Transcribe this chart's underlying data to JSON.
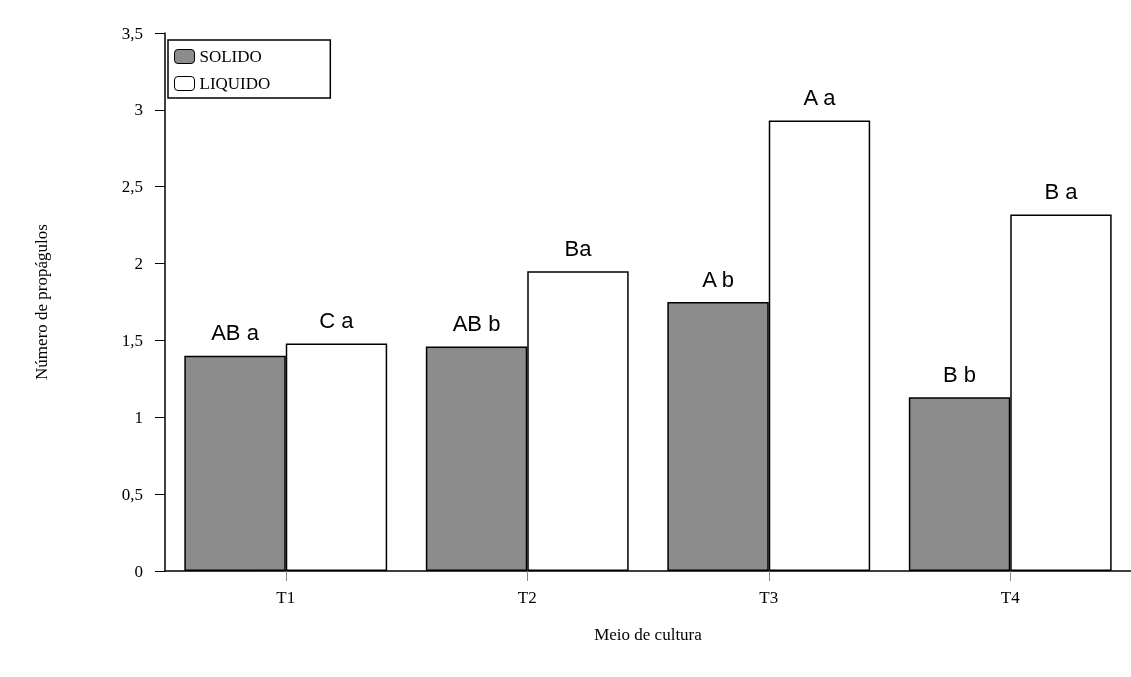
{
  "chart_data": {
    "type": "bar",
    "xlabel": "Meio de cultura",
    "ylabel": "Número de propágulos",
    "categories": [
      "T1",
      "T2",
      "T3",
      "T4"
    ],
    "series": [
      {
        "name": "SOLIDO",
        "color": "#8c8c8c",
        "values": [
          1.4,
          1.46,
          1.75,
          1.13
        ],
        "value_labels": [
          "AB a",
          "AB b",
          "A b",
          "B b"
        ]
      },
      {
        "name": "LIQUIDO",
        "color": "#ffffff",
        "values": [
          1.48,
          1.95,
          2.93,
          2.32
        ],
        "value_labels": [
          "C a",
          "Ba",
          "A a",
          "B a"
        ]
      }
    ],
    "ylim": [
      0,
      3.5
    ],
    "yticks": [
      0,
      {
        "value": 0.5,
        "label": "0,5"
      },
      1,
      {
        "value": 1.5,
        "label": "1,5"
      },
      2,
      {
        "value": 2.5,
        "label": "2,5"
      },
      3,
      {
        "value": 3.5,
        "label": "3,5"
      }
    ],
    "grid": false,
    "legend": "top left"
  }
}
